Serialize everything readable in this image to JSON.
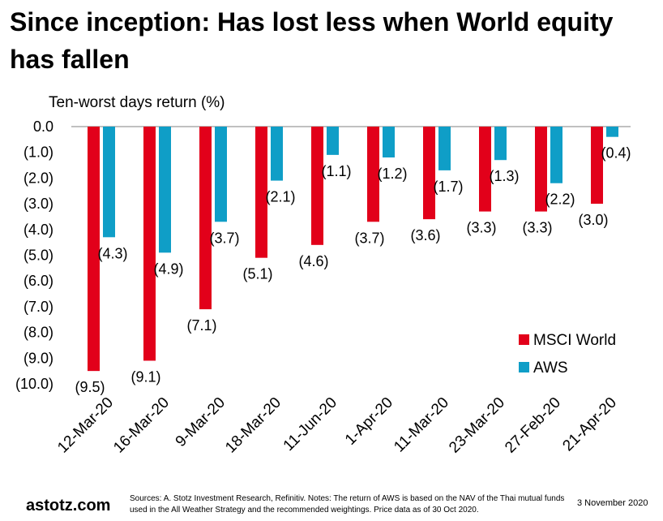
{
  "header": {
    "title": "Since inception: Has lost less when World equity has fallen"
  },
  "chart_data": {
    "type": "bar",
    "ylabel": "Ten-worst days return (%)",
    "ylim": [
      -10,
      0
    ],
    "yticks": [
      0,
      -1,
      -2,
      -3,
      -4,
      -5,
      -6,
      -7,
      -8,
      -9,
      -10
    ],
    "ytick_labels": [
      "0.0",
      "(1.0)",
      "(2.0)",
      "(3.0)",
      "(4.0)",
      "(5.0)",
      "(6.0)",
      "(7.0)",
      "(8.0)",
      "(9.0)",
      "(10.0)"
    ],
    "categories": [
      "12-Mar-20",
      "16-Mar-20",
      "9-Mar-20",
      "18-Mar-20",
      "11-Jun-20",
      "1-Apr-20",
      "11-Mar-20",
      "23-Mar-20",
      "27-Feb-20",
      "21-Apr-20"
    ],
    "series": [
      {
        "name": "MSCI World",
        "color": "#e2001a",
        "values": [
          -9.5,
          -9.1,
          -7.1,
          -5.1,
          -4.6,
          -3.7,
          -3.6,
          -3.3,
          -3.3,
          -3.0
        ],
        "labels": [
          "(9.5)",
          "(9.1)",
          "(7.1)",
          "(5.1)",
          "(4.6)",
          "(3.7)",
          "(3.6)",
          "(3.3)",
          "(3.3)",
          "(3.0)"
        ]
      },
      {
        "name": "AWS",
        "color": "#0f9ec7",
        "values": [
          -4.3,
          -4.9,
          -3.7,
          -2.1,
          -1.1,
          -1.2,
          -1.7,
          -1.3,
          -2.2,
          -0.4
        ],
        "labels": [
          "(4.3)",
          "(4.9)",
          "(3.7)",
          "(2.1)",
          "(1.1)",
          "(1.2)",
          "(1.7)",
          "(1.3)",
          "(2.2)",
          "(0.4)"
        ]
      }
    ],
    "legend": "right"
  },
  "footer": {
    "brand": "astotz.com",
    "note": "Sources: A. Stotz Investment Research, Refinitiv. Notes: The return of AWS is based on the NAV of the Thai mutual funds used in the All Weather Strategy and the recommended weightings. Price data as of 30 Oct 2020.",
    "date": "3 November 2020"
  }
}
